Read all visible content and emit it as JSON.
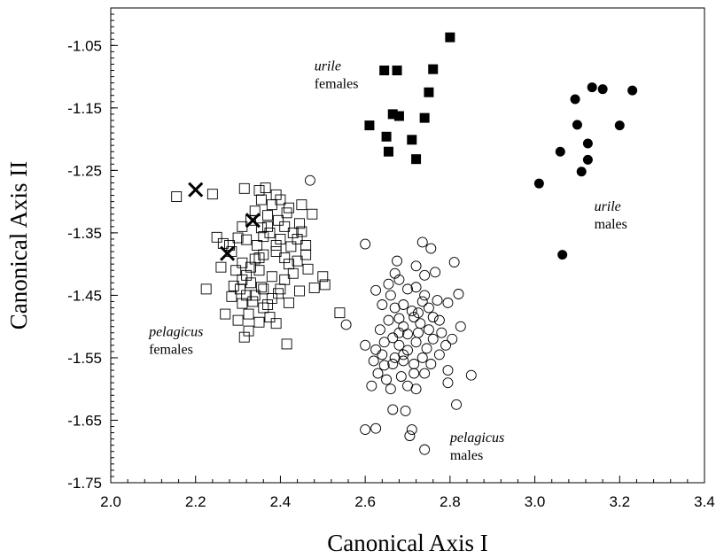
{
  "chart_data": {
    "type": "scatter",
    "xlabel": "Canonical Axis I",
    "ylabel": "Canonical Axis II",
    "xlim": [
      2.0,
      3.4
    ],
    "ylim": [
      -1.75,
      -0.99
    ],
    "x_ticks": [
      "2.0",
      "2.2",
      "2.4",
      "2.6",
      "2.8",
      "3.0",
      "3.2",
      "3.4"
    ],
    "y_ticks": [
      "-1.05",
      "-1.15",
      "-1.25",
      "-1.35",
      "-1.45",
      "-1.55",
      "-1.65",
      "-1.75"
    ],
    "grid": false,
    "annotations": [
      {
        "id": "urile-females",
        "species": "urile",
        "sex": "females",
        "x": 2.48,
        "y": -1.09
      },
      {
        "id": "urile-males",
        "species": "urile",
        "sex": "males",
        "x": 3.14,
        "y": -1.315
      },
      {
        "id": "pelagicus-females",
        "species": "pelagicus",
        "sex": "females",
        "x": 2.09,
        "y": -1.515
      },
      {
        "id": "pelagicus-males",
        "species": "pelagicus",
        "sex": "males",
        "x": 2.8,
        "y": -1.685
      }
    ],
    "series": [
      {
        "marker": "filled-square",
        "points": [
          [
            2.8,
            -1.037
          ],
          [
            2.645,
            -1.09
          ],
          [
            2.675,
            -1.09
          ],
          [
            2.76,
            -1.088
          ],
          [
            2.75,
            -1.125
          ],
          [
            2.61,
            -1.178
          ],
          [
            2.665,
            -1.16
          ],
          [
            2.68,
            -1.163
          ],
          [
            2.74,
            -1.166
          ],
          [
            2.65,
            -1.196
          ],
          [
            2.71,
            -1.201
          ],
          [
            2.655,
            -1.22
          ],
          [
            2.72,
            -1.232
          ]
        ]
      },
      {
        "marker": "filled-circle",
        "points": [
          [
            3.135,
            -1.117
          ],
          [
            3.16,
            -1.12
          ],
          [
            3.23,
            -1.122
          ],
          [
            3.095,
            -1.136
          ],
          [
            3.2,
            -1.178
          ],
          [
            3.1,
            -1.177
          ],
          [
            3.125,
            -1.207
          ],
          [
            3.06,
            -1.22
          ],
          [
            3.125,
            -1.233
          ],
          [
            3.11,
            -1.252
          ],
          [
            3.01,
            -1.271
          ],
          [
            3.065,
            -1.385
          ]
        ]
      },
      {
        "marker": "open-square",
        "points": [
          [
            2.155,
            -1.292
          ],
          [
            2.24,
            -1.288
          ],
          [
            2.315,
            -1.279
          ],
          [
            2.35,
            -1.282
          ],
          [
            2.365,
            -1.278
          ],
          [
            2.39,
            -1.289
          ],
          [
            2.45,
            -1.305
          ],
          [
            2.475,
            -1.32
          ],
          [
            2.34,
            -1.315
          ],
          [
            2.42,
            -1.31
          ],
          [
            2.445,
            -1.335
          ],
          [
            2.45,
            -1.348
          ],
          [
            2.37,
            -1.322
          ],
          [
            2.395,
            -1.33
          ],
          [
            2.31,
            -1.34
          ],
          [
            2.3,
            -1.358
          ],
          [
            2.32,
            -1.361
          ],
          [
            2.345,
            -1.37
          ],
          [
            2.36,
            -1.356
          ],
          [
            2.375,
            -1.35
          ],
          [
            2.4,
            -1.36
          ],
          [
            2.425,
            -1.372
          ],
          [
            2.46,
            -1.385
          ],
          [
            2.44,
            -1.395
          ],
          [
            2.41,
            -1.39
          ],
          [
            2.39,
            -1.38
          ],
          [
            2.36,
            -1.385
          ],
          [
            2.34,
            -1.392
          ],
          [
            2.31,
            -1.398
          ],
          [
            2.285,
            -1.38
          ],
          [
            2.265,
            -1.367
          ],
          [
            2.25,
            -1.357
          ],
          [
            2.26,
            -1.405
          ],
          [
            2.295,
            -1.41
          ],
          [
            2.32,
            -1.418
          ],
          [
            2.35,
            -1.41
          ],
          [
            2.38,
            -1.42
          ],
          [
            2.41,
            -1.425
          ],
          [
            2.43,
            -1.415
          ],
          [
            2.465,
            -1.408
          ],
          [
            2.5,
            -1.42
          ],
          [
            2.505,
            -1.433
          ],
          [
            2.48,
            -1.438
          ],
          [
            2.445,
            -1.443
          ],
          [
            2.395,
            -1.447
          ],
          [
            2.355,
            -1.437
          ],
          [
            2.33,
            -1.43
          ],
          [
            2.305,
            -1.44
          ],
          [
            2.285,
            -1.452
          ],
          [
            2.31,
            -1.463
          ],
          [
            2.335,
            -1.46
          ],
          [
            2.36,
            -1.47
          ],
          [
            2.375,
            -1.485
          ],
          [
            2.35,
            -1.493
          ],
          [
            2.325,
            -1.48
          ],
          [
            2.3,
            -1.49
          ],
          [
            2.27,
            -1.48
          ],
          [
            2.225,
            -1.44
          ],
          [
            2.325,
            -1.507
          ],
          [
            2.315,
            -1.517
          ],
          [
            2.415,
            -1.528
          ],
          [
            2.54,
            -1.478
          ],
          [
            2.37,
            -1.465
          ],
          [
            2.39,
            -1.495
          ],
          [
            2.42,
            -1.462
          ],
          [
            2.34,
            -1.45
          ],
          [
            2.38,
            -1.455
          ],
          [
            2.43,
            -1.35
          ],
          [
            2.41,
            -1.34
          ],
          [
            2.355,
            -1.342
          ],
          [
            2.33,
            -1.33
          ],
          [
            2.415,
            -1.318
          ],
          [
            2.38,
            -1.305
          ],
          [
            2.355,
            -1.297
          ],
          [
            2.4,
            -1.297
          ],
          [
            2.37,
            -1.34
          ],
          [
            2.39,
            -1.37
          ],
          [
            2.35,
            -1.39
          ],
          [
            2.33,
            -1.405
          ],
          [
            2.42,
            -1.4
          ],
          [
            2.36,
            -1.44
          ],
          [
            2.31,
            -1.425
          ],
          [
            2.29,
            -1.435
          ],
          [
            2.4,
            -1.44
          ],
          [
            2.44,
            -1.36
          ],
          [
            2.46,
            -1.37
          ],
          [
            2.28,
            -1.37
          ],
          [
            2.32,
            -1.45
          ]
        ]
      },
      {
        "marker": "open-circle",
        "points": [
          [
            2.47,
            -1.266
          ],
          [
            2.6,
            -1.368
          ],
          [
            2.735,
            -1.365
          ],
          [
            2.755,
            -1.375
          ],
          [
            2.81,
            -1.397
          ],
          [
            2.675,
            -1.395
          ],
          [
            2.72,
            -1.403
          ],
          [
            2.74,
            -1.418
          ],
          [
            2.765,
            -1.413
          ],
          [
            2.67,
            -1.415
          ],
          [
            2.655,
            -1.432
          ],
          [
            2.625,
            -1.442
          ],
          [
            2.68,
            -1.425
          ],
          [
            2.7,
            -1.44
          ],
          [
            2.72,
            -1.437
          ],
          [
            2.74,
            -1.45
          ],
          [
            2.77,
            -1.458
          ],
          [
            2.795,
            -1.462
          ],
          [
            2.82,
            -1.448
          ],
          [
            2.66,
            -1.45
          ],
          [
            2.64,
            -1.465
          ],
          [
            2.67,
            -1.47
          ],
          [
            2.69,
            -1.465
          ],
          [
            2.71,
            -1.475
          ],
          [
            2.715,
            -1.485
          ],
          [
            2.725,
            -1.478
          ],
          [
            2.68,
            -1.487
          ],
          [
            2.655,
            -1.49
          ],
          [
            2.635,
            -1.505
          ],
          [
            2.69,
            -1.5
          ],
          [
            2.7,
            -1.512
          ],
          [
            2.73,
            -1.495
          ],
          [
            2.76,
            -1.485
          ],
          [
            2.775,
            -1.49
          ],
          [
            2.78,
            -1.51
          ],
          [
            2.805,
            -1.52
          ],
          [
            2.825,
            -1.5
          ],
          [
            2.79,
            -1.53
          ],
          [
            2.76,
            -1.52
          ],
          [
            2.745,
            -1.535
          ],
          [
            2.72,
            -1.525
          ],
          [
            2.7,
            -1.538
          ],
          [
            2.68,
            -1.53
          ],
          [
            2.665,
            -1.518
          ],
          [
            2.645,
            -1.525
          ],
          [
            2.625,
            -1.537
          ],
          [
            2.6,
            -1.53
          ],
          [
            2.62,
            -1.555
          ],
          [
            2.645,
            -1.562
          ],
          [
            2.67,
            -1.55
          ],
          [
            2.69,
            -1.555
          ],
          [
            2.715,
            -1.56
          ],
          [
            2.735,
            -1.55
          ],
          [
            2.755,
            -1.56
          ],
          [
            2.775,
            -1.545
          ],
          [
            2.795,
            -1.57
          ],
          [
            2.85,
            -1.578
          ],
          [
            2.74,
            -1.575
          ],
          [
            2.715,
            -1.575
          ],
          [
            2.685,
            -1.58
          ],
          [
            2.65,
            -1.585
          ],
          [
            2.63,
            -1.575
          ],
          [
            2.615,
            -1.595
          ],
          [
            2.66,
            -1.6
          ],
          [
            2.7,
            -1.595
          ],
          [
            2.72,
            -1.6
          ],
          [
            2.795,
            -1.59
          ],
          [
            2.815,
            -1.625
          ],
          [
            2.665,
            -1.633
          ],
          [
            2.695,
            -1.635
          ],
          [
            2.6,
            -1.665
          ],
          [
            2.625,
            -1.663
          ],
          [
            2.71,
            -1.665
          ],
          [
            2.705,
            -1.675
          ],
          [
            2.74,
            -1.697
          ],
          [
            2.555,
            -1.497
          ],
          [
            2.68,
            -1.51
          ],
          [
            2.725,
            -1.51
          ],
          [
            2.75,
            -1.505
          ],
          [
            2.665,
            -1.56
          ],
          [
            2.69,
            -1.545
          ],
          [
            2.64,
            -1.545
          ],
          [
            2.75,
            -1.47
          ],
          [
            2.735,
            -1.46
          ]
        ]
      },
      {
        "marker": "x-cross",
        "points": [
          [
            2.2,
            -1.281
          ],
          [
            2.335,
            -1.33
          ],
          [
            2.275,
            -1.383
          ]
        ]
      }
    ]
  },
  "colors": {
    "ink": "#000000",
    "background": "#ffffff"
  }
}
